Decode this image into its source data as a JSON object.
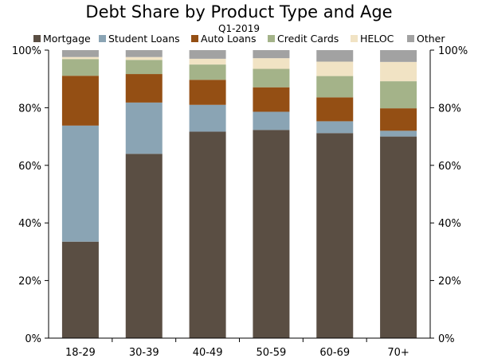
{
  "chart_data": {
    "type": "bar",
    "stacked": true,
    "title": "Debt Share by Product Type and Age",
    "subtitle": "Q1-2019",
    "xlabel": "",
    "ylabel": "",
    "ylim": [
      0,
      100
    ],
    "y_tick_labels": [
      "0%",
      "20%",
      "40%",
      "60%",
      "80%",
      "100%"
    ],
    "y_axis_both_sides": true,
    "legend_position": "top",
    "grid": false,
    "categories": [
      "18-29",
      "30-39",
      "40-49",
      "50-59",
      "60-69",
      "70+"
    ],
    "series": [
      {
        "name": "Mortgage",
        "color": "#5a4e43",
        "values": [
          33.5,
          64.0,
          71.7,
          72.3,
          71.2,
          70.0
        ]
      },
      {
        "name": "Student Loans",
        "color": "#8aa4b4",
        "values": [
          40.3,
          17.8,
          9.3,
          6.3,
          4.1,
          2.0
        ]
      },
      {
        "name": "Auto Loans",
        "color": "#944f14",
        "values": [
          17.3,
          9.9,
          8.7,
          8.5,
          8.3,
          7.8
        ]
      },
      {
        "name": "Credit Cards",
        "color": "#a4b389",
        "values": [
          5.8,
          4.9,
          5.3,
          6.4,
          7.4,
          9.4
        ]
      },
      {
        "name": "HELOC",
        "color": "#f1e3c4",
        "values": [
          0.7,
          1.0,
          2.0,
          3.7,
          5.0,
          6.7
        ]
      },
      {
        "name": "Other",
        "color": "#a2a2a2",
        "values": [
          2.4,
          2.4,
          3.0,
          2.8,
          4.0,
          4.1
        ]
      }
    ]
  }
}
